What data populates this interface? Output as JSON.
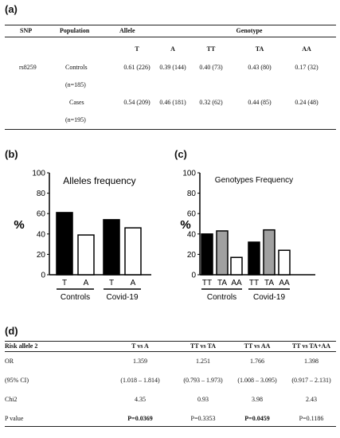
{
  "panel_a": {
    "label": "(a)",
    "headers": {
      "snp": "SNP",
      "population": "Population",
      "allele": "Allele",
      "genotype": "Genotype"
    },
    "subheaders": [
      "T",
      "A",
      "TT",
      "TA",
      "AA"
    ],
    "snp_id": "rs8259",
    "rows": [
      {
        "population": "Controls",
        "n": "(n=185)",
        "values": [
          "0.61 (226)",
          "0.39 (144)",
          "0.40 (73)",
          "0.43 (80)",
          "0.17 (32)"
        ]
      },
      {
        "population": "Cases",
        "n": "(n=195)",
        "values": [
          "0.54 (209)",
          "0.46 (181)",
          "0.32 (62)",
          "0.44 (85)",
          "0.24 (48)"
        ]
      }
    ]
  },
  "chart_data": [
    {
      "panel_label": "(b)",
      "type": "bar",
      "title": "Alleles frequency",
      "ylabel": "%",
      "ylim": [
        0,
        100
      ],
      "yticks": [
        "0",
        "20",
        "40",
        "60",
        "80",
        "100"
      ],
      "groups": [
        "Controls",
        "Covid-19"
      ],
      "categories": [
        "T",
        "A",
        "T",
        "A"
      ],
      "values": [
        61,
        39,
        54,
        46
      ],
      "fills": [
        "#000000",
        "#ffffff",
        "#000000",
        "#ffffff"
      ]
    },
    {
      "panel_label": "(c)",
      "type": "bar",
      "title": "Genotypes Frequency",
      "ylabel": "%",
      "ylim": [
        0,
        100
      ],
      "yticks": [
        "0",
        "20",
        "40",
        "60",
        "80",
        "100"
      ],
      "groups": [
        "Controls",
        "Covid-19"
      ],
      "categories": [
        "TT",
        "TA",
        "AA",
        "TT",
        "TA",
        "AA"
      ],
      "values": [
        40,
        43,
        17,
        32,
        44,
        24
      ],
      "fills": [
        "#000000",
        "#a0a0a0",
        "#ffffff",
        "#000000",
        "#a0a0a0",
        "#ffffff"
      ]
    }
  ],
  "panel_d": {
    "label": "(d)",
    "header": [
      "Risk allele 2",
      "T vs A",
      "TT vs TA",
      "TT vs AA",
      "TT vs TA+AA"
    ],
    "rows": [
      {
        "label": "OR",
        "values": [
          "1.359",
          "1.251",
          "1.766",
          "1.398"
        ],
        "bold": [
          false,
          false,
          false,
          false
        ]
      },
      {
        "label": "(95% CI)",
        "values": [
          "(1.018 – 1.814)",
          "(0.793 – 1.973)",
          "(1.008 – 3.095)",
          "(0.917 – 2.131)"
        ],
        "bold": [
          false,
          false,
          false,
          false
        ]
      },
      {
        "label": "Chi2",
        "values": [
          "4.35",
          "0.93",
          "3.98",
          "2.43"
        ],
        "bold": [
          false,
          false,
          false,
          false
        ]
      },
      {
        "label": "P value",
        "values": [
          "P=0.0369",
          "P=0.3353",
          "P=0.0459",
          "P=0.1186"
        ],
        "bold": [
          true,
          false,
          true,
          false
        ]
      }
    ]
  }
}
